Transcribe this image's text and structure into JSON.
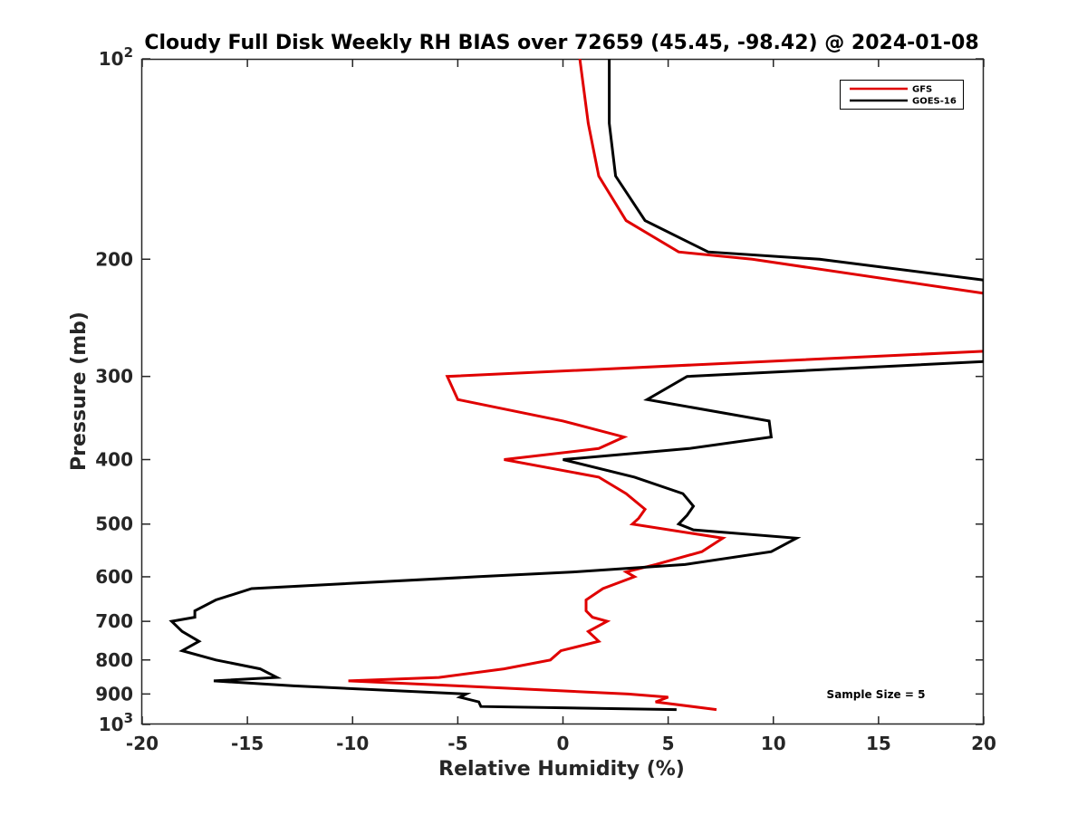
{
  "chart_data": {
    "type": "line",
    "title": "Cloudy Full Disk Weekly RH BIAS over 72659 (45.45, -98.42) @ 2024-01-08",
    "xlabel": "Relative Humidity (%)",
    "ylabel": "Pressure (mb)",
    "xlim": [
      -20,
      20
    ],
    "ylim": [
      100,
      1000
    ],
    "y_scale": "log",
    "y_reversed": true,
    "grid": false,
    "legend_position": "top-right",
    "annotation": "Sample Size = 5",
    "x_ticks": [
      "-20",
      "-15",
      "-10",
      "-5",
      "0",
      "5",
      "10",
      "15",
      "20"
    ],
    "x_tick_values": [
      -20,
      -15,
      -10,
      -5,
      0,
      5,
      10,
      15,
      20
    ],
    "y_ticks": [
      {
        "value": 100,
        "base": "10",
        "sup": "2"
      },
      {
        "value": 200,
        "base": "200",
        "sup": ""
      },
      {
        "value": 300,
        "base": "300",
        "sup": ""
      },
      {
        "value": 400,
        "base": "400",
        "sup": ""
      },
      {
        "value": 500,
        "base": "500",
        "sup": ""
      },
      {
        "value": 600,
        "base": "600",
        "sup": ""
      },
      {
        "value": 700,
        "base": "700",
        "sup": ""
      },
      {
        "value": 800,
        "base": "800",
        "sup": ""
      },
      {
        "value": 900,
        "base": "900",
        "sup": ""
      },
      {
        "value": 1000,
        "base": "10",
        "sup": "3"
      }
    ],
    "series": [
      {
        "name": "GFS",
        "color": "#e00000",
        "points": [
          [
            0.8,
            100
          ],
          [
            1.2,
            125
          ],
          [
            1.7,
            150
          ],
          [
            3.0,
            175
          ],
          [
            5.5,
            195
          ],
          [
            9.0,
            200
          ],
          [
            20.0,
            225
          ],
          [
            20.0,
            275
          ],
          [
            -5.5,
            300
          ],
          [
            -5.0,
            325
          ],
          [
            0.0,
            350
          ],
          [
            2.9,
            370
          ],
          [
            1.7,
            385
          ],
          [
            -2.8,
            400
          ],
          [
            1.7,
            425
          ],
          [
            3.0,
            450
          ],
          [
            3.9,
            475
          ],
          [
            3.6,
            490
          ],
          [
            3.3,
            500
          ],
          [
            7.6,
            525
          ],
          [
            6.6,
            550
          ],
          [
            4.4,
            575
          ],
          [
            3.0,
            590
          ],
          [
            3.4,
            600
          ],
          [
            1.9,
            625
          ],
          [
            1.1,
            650
          ],
          [
            1.1,
            675
          ],
          [
            1.4,
            690
          ],
          [
            2.1,
            700
          ],
          [
            1.2,
            725
          ],
          [
            1.7,
            750
          ],
          [
            -0.1,
            775
          ],
          [
            -0.6,
            800
          ],
          [
            -2.8,
            825
          ],
          [
            -5.9,
            850
          ],
          [
            -10.2,
            860
          ],
          [
            -5.0,
            875
          ],
          [
            3.1,
            900
          ],
          [
            5.0,
            910
          ],
          [
            4.4,
            925
          ],
          [
            7.3,
            950
          ]
        ]
      },
      {
        "name": "GOES-16",
        "color": "#000000",
        "points": [
          [
            2.2,
            100
          ],
          [
            2.2,
            125
          ],
          [
            2.5,
            150
          ],
          [
            3.9,
            175
          ],
          [
            6.9,
            195
          ],
          [
            12.2,
            200
          ],
          [
            20.0,
            215
          ],
          [
            20.0,
            285
          ],
          [
            5.9,
            300
          ],
          [
            4.0,
            325
          ],
          [
            9.8,
            350
          ],
          [
            9.9,
            370
          ],
          [
            6.0,
            385
          ],
          [
            0.0,
            400
          ],
          [
            3.4,
            425
          ],
          [
            5.7,
            450
          ],
          [
            6.2,
            470
          ],
          [
            5.9,
            485
          ],
          [
            5.5,
            500
          ],
          [
            6.2,
            510
          ],
          [
            11.1,
            525
          ],
          [
            9.9,
            550
          ],
          [
            5.8,
            575
          ],
          [
            0.5,
            590
          ],
          [
            -4.1,
            600
          ],
          [
            -14.8,
            625
          ],
          [
            -16.5,
            650
          ],
          [
            -17.5,
            675
          ],
          [
            -17.5,
            690
          ],
          [
            -18.6,
            700
          ],
          [
            -18.1,
            725
          ],
          [
            -17.3,
            750
          ],
          [
            -18.1,
            775
          ],
          [
            -16.5,
            800
          ],
          [
            -14.4,
            825
          ],
          [
            -13.6,
            850
          ],
          [
            -16.6,
            860
          ],
          [
            -12.8,
            875
          ],
          [
            -4.6,
            900
          ],
          [
            -4.9,
            910
          ],
          [
            -4.0,
            925
          ],
          [
            -3.9,
            940
          ],
          [
            5.4,
            950
          ]
        ]
      }
    ]
  }
}
